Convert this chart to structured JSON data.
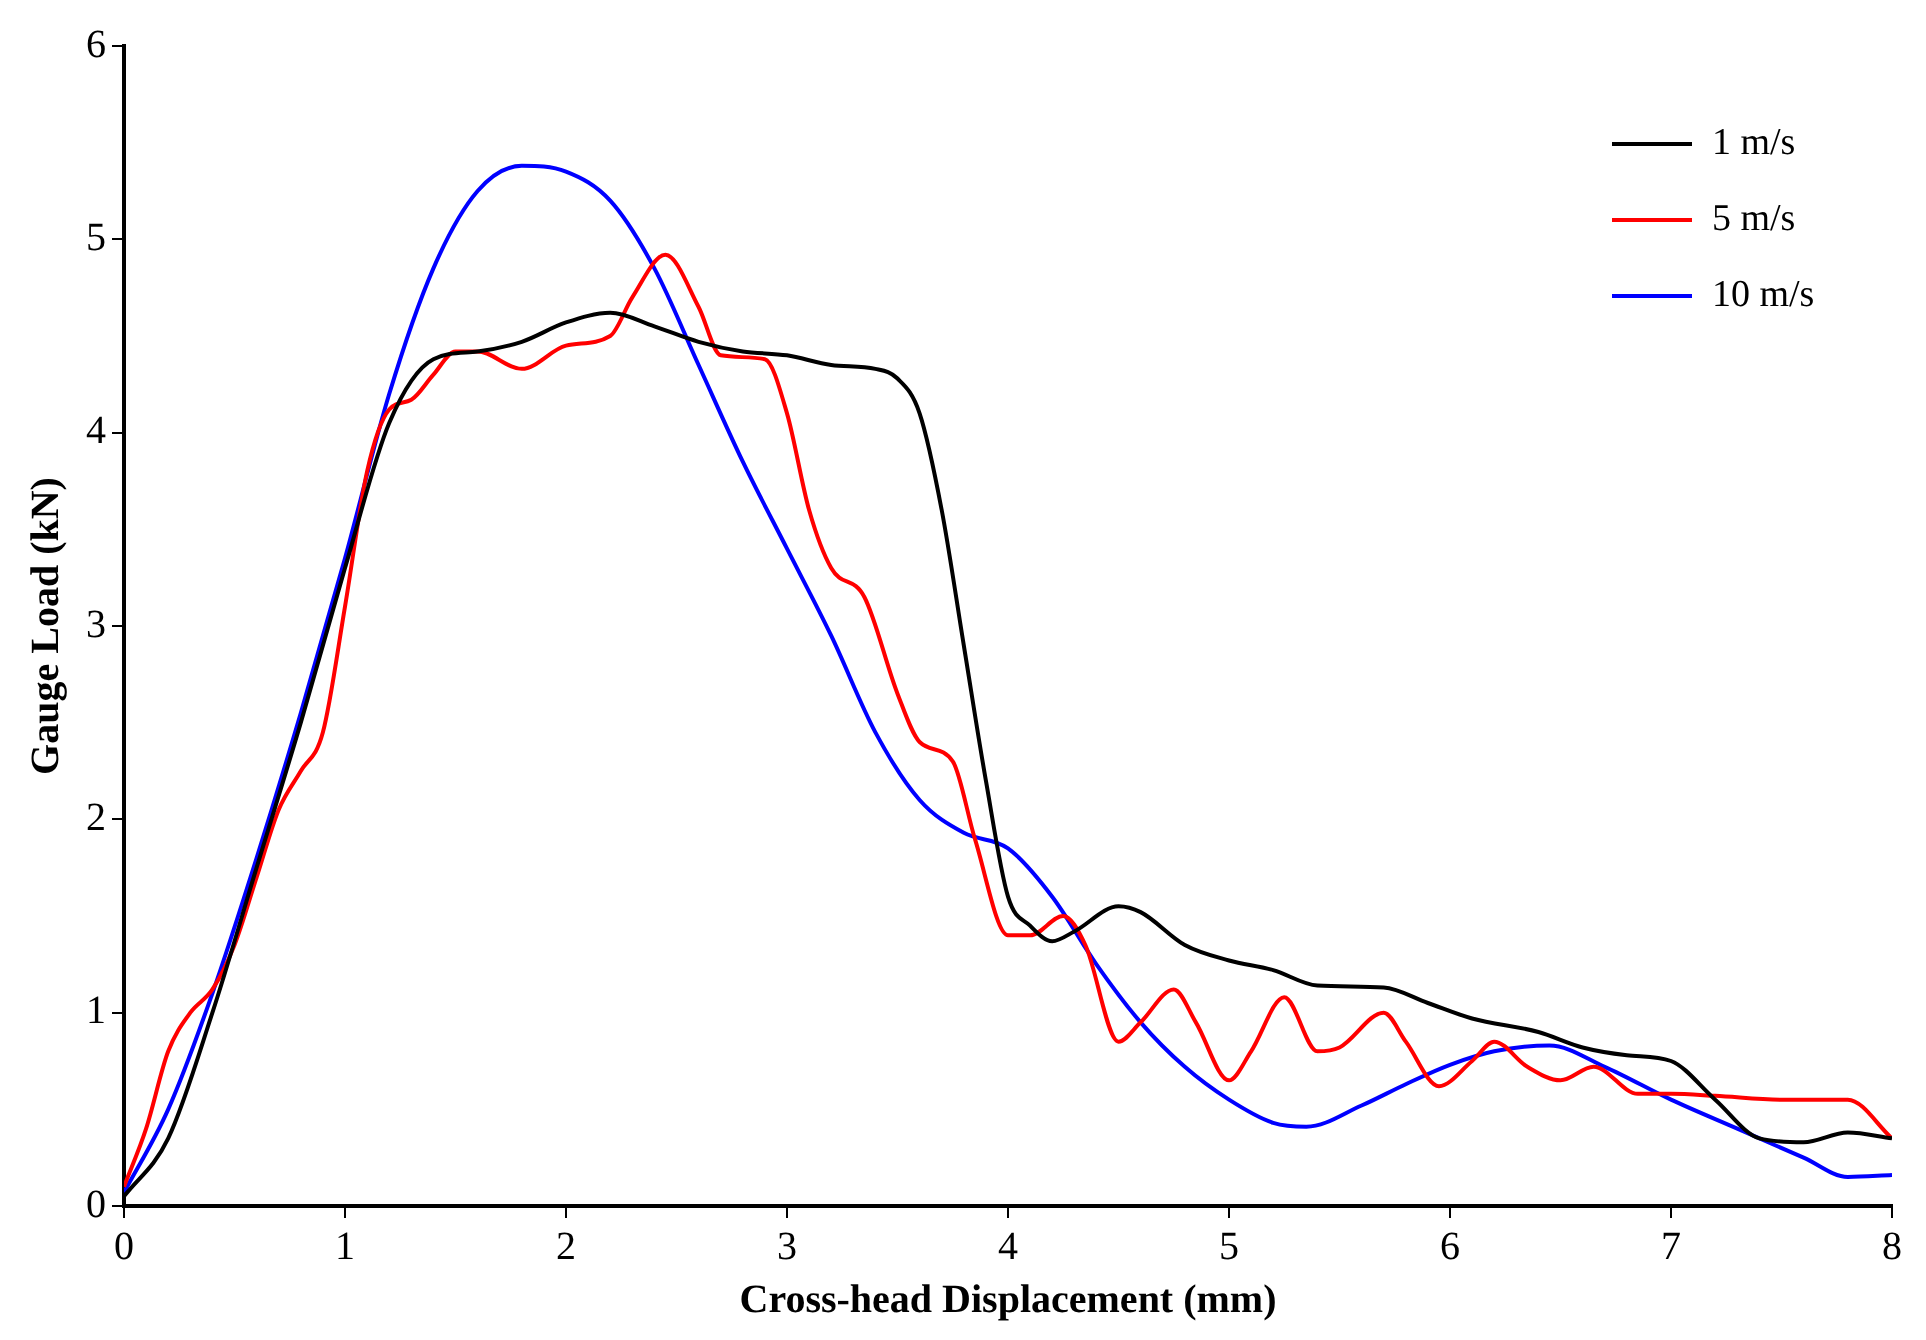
{
  "chart_data": {
    "type": "line",
    "xlabel": "Cross-head Displacement (mm)",
    "ylabel": "Gauge Load (kN)",
    "xlim": [
      0,
      8
    ],
    "xticks": [
      0,
      1,
      2,
      3,
      4,
      5,
      6,
      7,
      8
    ],
    "ylim": [
      0,
      6
    ],
    "yticks": [
      0,
      1,
      2,
      3,
      4,
      5,
      6
    ],
    "grid": false,
    "legend": "top right",
    "marker": "none",
    "line_style": "solid",
    "series": [
      {
        "name": "1 m/s",
        "color": "#000000",
        "x": [
          0,
          0.2,
          0.4,
          0.6,
          0.8,
          1.0,
          1.2,
          1.4,
          1.6,
          1.8,
          2.0,
          2.2,
          2.4,
          2.6,
          2.8,
          3.0,
          3.2,
          3.4,
          3.5,
          3.6,
          3.7,
          3.8,
          3.9,
          4.0,
          4.1,
          4.2,
          4.3,
          4.5,
          4.6,
          4.8,
          5.0,
          5.2,
          5.4,
          5.7,
          5.9,
          6.1,
          6.4,
          6.6,
          6.8,
          7.0,
          7.2,
          7.4,
          7.6,
          7.8,
          8.0
        ],
        "values": [
          0.05,
          0.35,
          1.0,
          1.75,
          2.5,
          3.3,
          4.05,
          4.38,
          4.42,
          4.47,
          4.57,
          4.62,
          4.55,
          4.47,
          4.42,
          4.4,
          4.35,
          4.33,
          4.28,
          4.1,
          3.6,
          2.9,
          2.2,
          1.6,
          1.45,
          1.37,
          1.42,
          1.55,
          1.52,
          1.35,
          1.27,
          1.22,
          1.14,
          1.13,
          1.05,
          0.97,
          0.9,
          0.82,
          0.78,
          0.75,
          0.55,
          0.35,
          0.33,
          0.38,
          0.35
        ]
      },
      {
        "name": "5 m/s",
        "color": "#ff0000",
        "x": [
          0,
          0.1,
          0.2,
          0.3,
          0.4,
          0.5,
          0.6,
          0.7,
          0.8,
          0.9,
          1.0,
          1.1,
          1.2,
          1.3,
          1.4,
          1.5,
          1.6,
          1.8,
          2.0,
          2.2,
          2.3,
          2.45,
          2.6,
          2.7,
          2.9,
          3.0,
          3.1,
          3.2,
          3.35,
          3.5,
          3.6,
          3.75,
          3.85,
          4.0,
          4.1,
          4.25,
          4.35,
          4.5,
          4.6,
          4.75,
          4.85,
          5.0,
          5.1,
          5.25,
          5.4,
          5.5,
          5.7,
          5.8,
          5.95,
          6.1,
          6.2,
          6.35,
          6.5,
          6.65,
          6.85,
          7.0,
          7.2,
          7.5,
          7.8,
          8.0
        ],
        "values": [
          0.1,
          0.4,
          0.8,
          1.0,
          1.12,
          1.35,
          1.7,
          2.05,
          2.25,
          2.45,
          3.1,
          3.8,
          4.12,
          4.17,
          4.3,
          4.42,
          4.42,
          4.33,
          4.45,
          4.5,
          4.7,
          4.92,
          4.65,
          4.4,
          4.38,
          4.1,
          3.6,
          3.3,
          3.15,
          2.65,
          2.4,
          2.3,
          1.9,
          1.4,
          1.4,
          1.5,
          1.35,
          0.85,
          0.95,
          1.12,
          0.95,
          0.65,
          0.8,
          1.08,
          0.8,
          0.82,
          1.0,
          0.85,
          0.62,
          0.75,
          0.85,
          0.72,
          0.65,
          0.72,
          0.58,
          0.58,
          0.57,
          0.55,
          0.55,
          0.35
        ]
      },
      {
        "name": "10 m/s",
        "color": "#0000ff",
        "x": [
          0,
          0.2,
          0.4,
          0.6,
          0.8,
          1.0,
          1.2,
          1.4,
          1.6,
          1.8,
          2.0,
          2.2,
          2.4,
          2.6,
          2.8,
          3.0,
          3.2,
          3.4,
          3.6,
          3.8,
          4.0,
          4.2,
          4.4,
          4.6,
          4.8,
          5.0,
          5.2,
          5.35,
          5.6,
          5.8,
          6.0,
          6.2,
          6.45,
          6.7,
          7.0,
          7.3,
          7.6,
          7.8,
          8.0
        ],
        "values": [
          0.07,
          0.5,
          1.1,
          1.8,
          2.55,
          3.35,
          4.2,
          4.85,
          5.25,
          5.38,
          5.35,
          5.2,
          4.85,
          4.35,
          3.85,
          3.4,
          2.95,
          2.45,
          2.1,
          1.93,
          1.85,
          1.6,
          1.25,
          0.95,
          0.72,
          0.55,
          0.43,
          0.41,
          0.52,
          0.63,
          0.73,
          0.8,
          0.83,
          0.72,
          0.55,
          0.4,
          0.25,
          0.15,
          0.16
        ]
      }
    ]
  }
}
